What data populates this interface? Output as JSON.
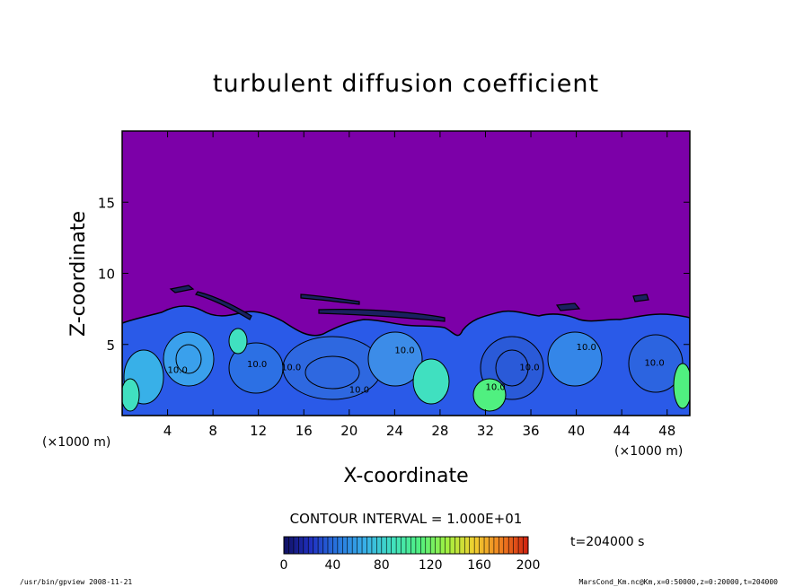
{
  "chart_data": {
    "type": "heatmap",
    "title": "turbulent diffusion coefficient",
    "xlabel": "X-coordinate",
    "ylabel": "Z-coordinate",
    "x_unit": "(×1000 m)",
    "y_unit": "(×1000 m)",
    "xlim": [
      0,
      50
    ],
    "ylim": [
      0,
      20
    ],
    "x_ticks": [
      4,
      8,
      12,
      16,
      20,
      24,
      28,
      32,
      36,
      40,
      44,
      48
    ],
    "y_ticks": [
      5,
      10,
      15
    ],
    "contour_interval_text": "CONTOUR INTERVAL = 1.000E+01",
    "contour_labels": [
      "10.0",
      "10.0",
      "10.0",
      "10.0",
      "10.0",
      "10.0",
      "10.0",
      "10.0",
      "10.0"
    ],
    "colorbar": {
      "min": 0,
      "max": 200,
      "ticks": [
        0,
        40,
        80,
        120,
        160,
        200
      ],
      "stops": [
        "#101060",
        "#2030c0",
        "#2878e0",
        "#38b0e8",
        "#40e0c0",
        "#50f080",
        "#a0f040",
        "#f0d030",
        "#f08020",
        "#d02010"
      ]
    },
    "time_label": "t=204000 s",
    "background_color": "#7c00a8",
    "footer_left": "/usr/bin/gpview  2008-11-21",
    "footer_right": "MarsCond_Km.nc@Km,x=0:50000,z=0:20000,t=204000"
  }
}
